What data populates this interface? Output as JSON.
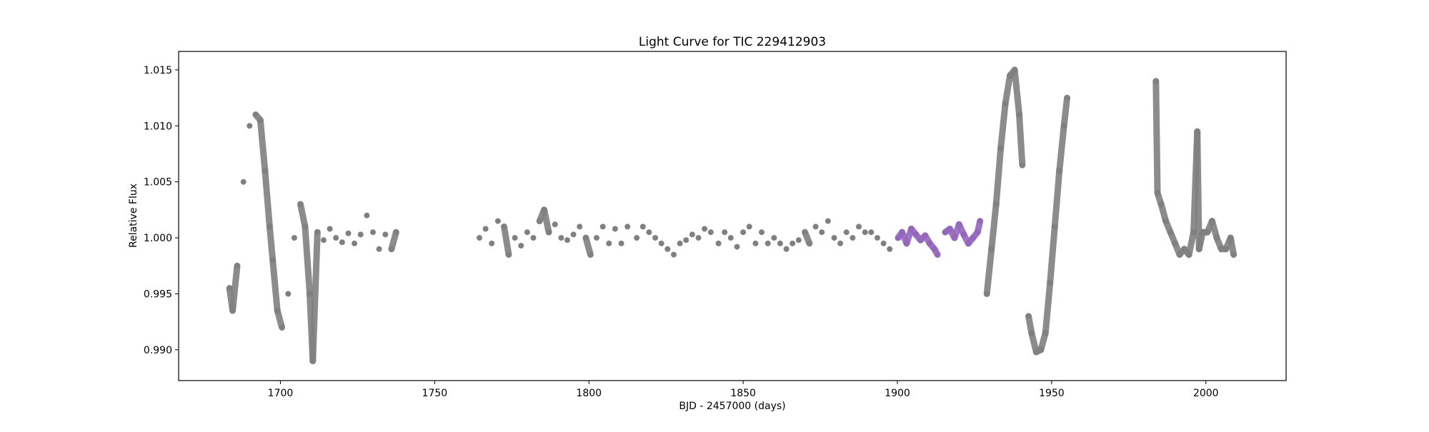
{
  "chart_data": {
    "type": "scatter",
    "title": "Light Curve for TIC 229412903",
    "xlabel": "BJD - 2457000 (days)",
    "ylabel": "Relative Flux",
    "xlim": [
      1667,
      2026
    ],
    "ylim": [
      0.98725,
      1.01665
    ],
    "xticks": [
      1700,
      1750,
      1800,
      1850,
      1900,
      1950,
      2000
    ],
    "xtick_labels": [
      "1700",
      "1750",
      "1800",
      "1850",
      "1900",
      "1950",
      "2000"
    ],
    "yticks": [
      0.99,
      0.995,
      1.0,
      1.005,
      1.01,
      1.015
    ],
    "ytick_labels": [
      "0.990",
      "0.995",
      "1.000",
      "1.005",
      "1.010",
      "1.015"
    ],
    "grid": false,
    "series": [
      {
        "color": "#808080",
        "points": [
          [
            1683.5,
            0.9955
          ],
          [
            1684.5,
            0.9935
          ],
          [
            1686,
            0.9975
          ],
          [
            1688,
            1.005
          ],
          [
            1690,
            1.01
          ],
          [
            1692,
            1.011
          ],
          [
            1693.5,
            1.0105
          ],
          [
            1695,
            1.006
          ],
          [
            1696.5,
            1.001
          ],
          [
            1697.5,
            0.998
          ],
          [
            1699,
            0.9935
          ],
          [
            1700.5,
            0.992
          ],
          [
            1702.5,
            0.995
          ],
          [
            1704.5,
            1.0
          ],
          [
            1706.5,
            1.003
          ],
          [
            1708,
            1.001
          ],
          [
            1709.5,
            0.995
          ],
          [
            1710.5,
            0.989
          ],
          [
            1712,
            1.0005
          ],
          [
            1714,
            0.9998
          ],
          [
            1716,
            1.0008
          ],
          [
            1718,
            1.0
          ],
          [
            1720,
            0.9996
          ],
          [
            1722,
            1.0004
          ],
          [
            1724,
            0.9995
          ],
          [
            1726,
            1.0003
          ],
          [
            1728,
            1.002
          ],
          [
            1730,
            1.0005
          ],
          [
            1732,
            0.999
          ],
          [
            1734,
            1.0003
          ],
          [
            1736,
            0.999
          ],
          [
            1737.5,
            1.0005
          ],
          [
            1764.5,
            1.0
          ],
          [
            1766.5,
            1.0008
          ],
          [
            1768.5,
            0.9995
          ],
          [
            1770.5,
            1.0015
          ],
          [
            1772.5,
            1.001
          ],
          [
            1774,
            0.9985
          ],
          [
            1776,
            1.0
          ],
          [
            1778,
            0.9993
          ],
          [
            1780,
            1.0005
          ],
          [
            1782,
            1.0
          ],
          [
            1784,
            1.0015
          ],
          [
            1785.5,
            1.0025
          ],
          [
            1787,
            1.0005
          ],
          [
            1789,
            1.0012
          ],
          [
            1791,
            1.0
          ],
          [
            1793,
            0.9998
          ],
          [
            1795,
            1.0003
          ],
          [
            1797,
            1.001
          ],
          [
            1799,
            1.0
          ],
          [
            1800.5,
            0.9985
          ],
          [
            1802.5,
            1.0
          ],
          [
            1804.5,
            1.001
          ],
          [
            1806.5,
            0.9995
          ],
          [
            1808.5,
            1.0008
          ],
          [
            1810.5,
            0.9995
          ],
          [
            1812.5,
            1.001
          ],
          [
            1815.5,
            1.0
          ],
          [
            1817.5,
            1.001
          ],
          [
            1819.5,
            1.0005
          ],
          [
            1821.5,
            1.0
          ],
          [
            1823.5,
            0.9995
          ],
          [
            1825.5,
            0.999
          ],
          [
            1827.5,
            0.9985
          ],
          [
            1829.5,
            0.9995
          ],
          [
            1831.5,
            0.9998
          ],
          [
            1833.5,
            1.0003
          ],
          [
            1835.5,
            1.0
          ],
          [
            1837.5,
            1.0008
          ],
          [
            1839.5,
            1.0005
          ],
          [
            1842,
            0.9995
          ],
          [
            1844,
            1.0005
          ],
          [
            1846,
            1.0
          ],
          [
            1848,
            0.9992
          ],
          [
            1850,
            1.0005
          ],
          [
            1852,
            1.001
          ],
          [
            1854,
            0.9995
          ],
          [
            1856,
            1.0005
          ],
          [
            1858,
            0.9995
          ],
          [
            1860,
            1.0
          ],
          [
            1862,
            0.9995
          ],
          [
            1864,
            0.999
          ],
          [
            1866,
            0.9995
          ],
          [
            1868,
            0.9998
          ],
          [
            1870,
            1.0005
          ],
          [
            1871.5,
            0.9995
          ],
          [
            1873.5,
            1.001
          ],
          [
            1875.5,
            1.0005
          ],
          [
            1877.5,
            1.0015
          ],
          [
            1879.5,
            1.0
          ],
          [
            1881.5,
            0.9995
          ],
          [
            1883.5,
            1.0005
          ],
          [
            1885.5,
            1.0
          ],
          [
            1887.5,
            1.001
          ],
          [
            1889.5,
            1.0005
          ],
          [
            1891.5,
            1.0005
          ],
          [
            1893.5,
            1.0
          ],
          [
            1895.5,
            0.9995
          ],
          [
            1897.5,
            0.999
          ],
          [
            1929,
            0.995
          ],
          [
            1930.5,
            0.999
          ],
          [
            1932,
            1.003
          ],
          [
            1933.5,
            1.008
          ],
          [
            1935,
            1.012
          ],
          [
            1936.5,
            1.0145
          ],
          [
            1938,
            1.015
          ],
          [
            1939.5,
            1.011
          ],
          [
            1940.5,
            1.0065
          ],
          [
            1942.5,
            0.993
          ],
          [
            1943.5,
            0.9915
          ],
          [
            1945,
            0.9898
          ],
          [
            1946.5,
            0.99
          ],
          [
            1948,
            0.9915
          ],
          [
            1949.5,
            0.996
          ],
          [
            1951,
            1.001
          ],
          [
            1952.5,
            1.006
          ],
          [
            1954,
            1.01
          ],
          [
            1955,
            1.0125
          ],
          [
            1983.8,
            1.014
          ],
          [
            1984.3,
            1.004
          ],
          [
            1985.5,
            1.003
          ],
          [
            1987,
            1.0015
          ],
          [
            1988.5,
            1.0005
          ],
          [
            1990,
            0.9995
          ],
          [
            1991.5,
            0.9985
          ],
          [
            1993,
            0.999
          ],
          [
            1994.5,
            0.9985
          ],
          [
            1996,
            1.0005
          ],
          [
            1997.2,
            1.0095
          ],
          [
            1997.8,
            0.999
          ],
          [
            1999,
            1.0005
          ],
          [
            2000.5,
            1.0005
          ],
          [
            2002,
            1.0015
          ],
          [
            2003.5,
            1.0
          ],
          [
            2005,
            0.999
          ],
          [
            2006.5,
            0.999
          ],
          [
            2008,
            1.0
          ],
          [
            2009,
            0.9985
          ]
        ]
      },
      {
        "color": "#9467bd",
        "points": [
          [
            1900.2,
            1.0
          ],
          [
            1901.5,
            1.0005
          ],
          [
            1903,
            0.9995
          ],
          [
            1904.5,
            1.0008
          ],
          [
            1906,
            1.0003
          ],
          [
            1907.5,
            0.9998
          ],
          [
            1909,
            1.0002
          ],
          [
            1910.5,
            0.9995
          ],
          [
            1912,
            0.999
          ],
          [
            1913,
            0.9985
          ],
          [
            1915.5,
            1.0005
          ],
          [
            1917,
            1.0008
          ],
          [
            1918.5,
            1.0
          ],
          [
            1920,
            1.0012
          ],
          [
            1921.5,
            1.0003
          ],
          [
            1923,
            0.9995
          ],
          [
            1924.5,
            1.0
          ],
          [
            1926,
            1.0005
          ],
          [
            1926.8,
            1.0015
          ]
        ]
      }
    ]
  }
}
